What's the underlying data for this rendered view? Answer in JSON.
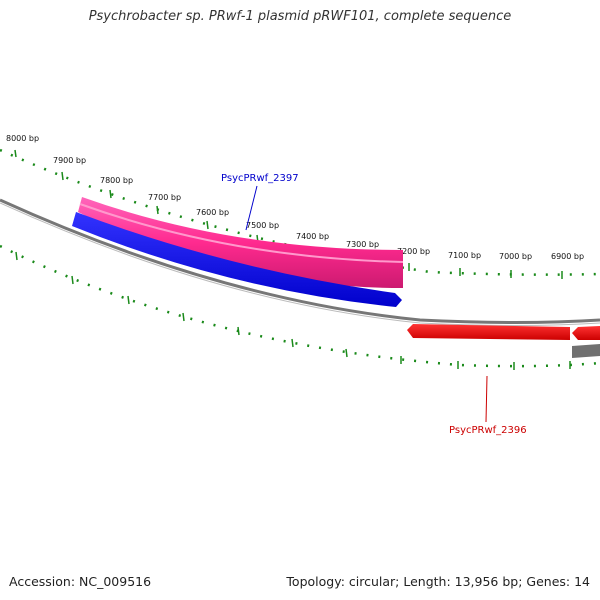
{
  "title": "Psychrobacter sp. PRwf-1 plasmid pRWF101, complete sequence",
  "footer": {
    "accession": "Accession: NC_009516",
    "summary": "Topology: circular; Length: 13,956 bp; Genes: 14"
  },
  "scale": {
    "ticks": [
      "8000 bp",
      "7900 bp",
      "7800 bp",
      "7700 bp",
      "7600 bp",
      "7500 bp",
      "7400 bp",
      "7300 bp",
      "7200 bp",
      "7100 bp",
      "7000 bp",
      "6900 bp"
    ]
  },
  "genes": {
    "upper": {
      "label": "PsycPRwf_2397",
      "color": "#0000cc"
    },
    "lower": {
      "label": "PsycPRwf_2396",
      "color": "#cc0000"
    }
  },
  "colors": {
    "pink": "#ff3399",
    "blue": "#0000ee",
    "red": "#ee1111",
    "backbone": "#777777",
    "dots": "#1a8a1a"
  }
}
